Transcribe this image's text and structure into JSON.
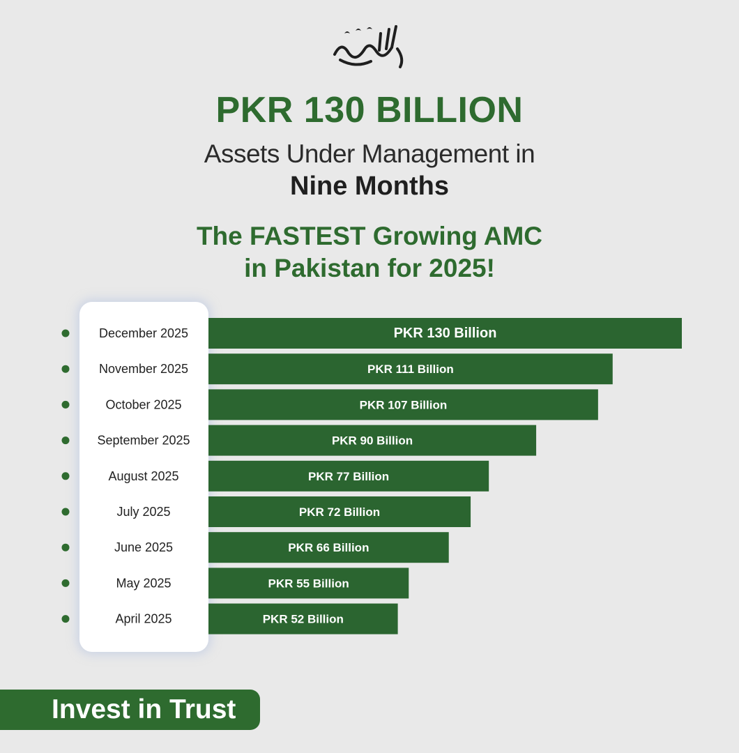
{
  "header": {
    "headline": "PKR 130 BILLION",
    "subline": "Assets Under Management in",
    "subline_bold": "Nine Months",
    "tagline_1": "The FASTEST Growing AMC",
    "tagline_2": "in Pakistan for 2025!"
  },
  "logo": {
    "icon": "alhamdulillah-calligraphy"
  },
  "cta": {
    "label": "Invest in Trust"
  },
  "colors": {
    "accent": "#2e6b2f",
    "bar": "#2b6530",
    "background": "#e9e9e9",
    "card": "#ffffff",
    "dot": "#2e6b2f"
  },
  "chart_data": {
    "type": "bar",
    "orientation": "horizontal",
    "categories": [
      "December 2025",
      "November 2025",
      "October 2025",
      "September 2025",
      "August 2025",
      "July 2025",
      "June 2025",
      "May 2025",
      "April 2025"
    ],
    "values": [
      130,
      111,
      107,
      90,
      77,
      72,
      66,
      55,
      52
    ],
    "data_labels": [
      "PKR 130 Billion",
      "PKR 111 Billion",
      "PKR 107 Billion",
      "PKR 90 Billion",
      "PKR 77 Billion",
      "PKR 72 Billion",
      "PKR 66 Billion",
      "PKR 55 Billion",
      "PKR 52 Billion"
    ],
    "unit": "PKR Billion",
    "grid": false
  }
}
